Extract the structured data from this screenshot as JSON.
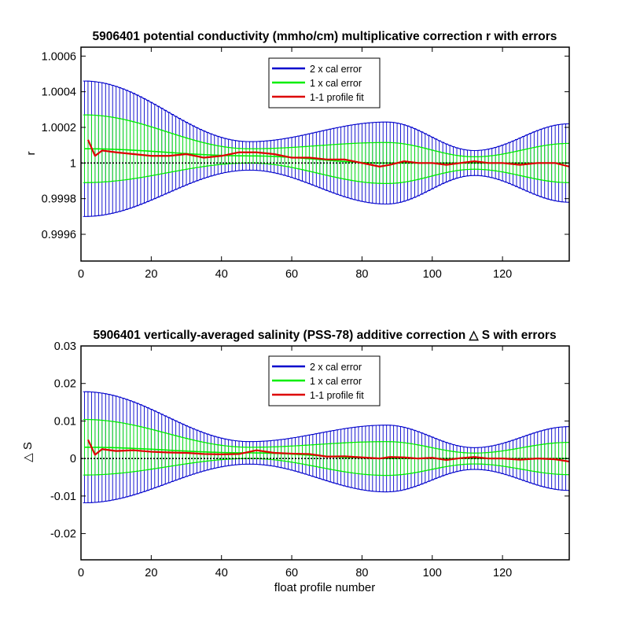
{
  "chart_data": [
    {
      "type": "line",
      "title": "5906401 potential conductivity (mmho/cm) multiplicative correction r with errors",
      "xlabel": "",
      "ylabel": "r",
      "xlim": [
        0,
        139
      ],
      "ylim": [
        0.99945,
        1.00065
      ],
      "xticks": [
        0,
        20,
        40,
        60,
        80,
        100,
        120
      ],
      "xtick_labels": [
        "0",
        "20",
        "40",
        "60",
        "80",
        "100",
        "120"
      ],
      "yticks": [
        0.9996,
        0.9998,
        1.0,
        1.0002,
        1.0004,
        1.0006
      ],
      "ytick_labels": [
        "0.9996",
        "0.9998",
        "1",
        "1.0002",
        "1.0004",
        "1.0006"
      ],
      "reference_line": 1.0,
      "legend_position": "top-center",
      "legend": [
        "2 x cal error",
        "1 x cal error",
        "1-1 profile fit"
      ],
      "colors": {
        "two_cal": "#0000cc",
        "one_cal": "#00ee00",
        "fit": "#dd0000",
        "reference": "#000000"
      },
      "error_knots_x": [
        1,
        48,
        87,
        112,
        139
      ],
      "center_knots": [
        1.00008,
        1.00004,
        1.0,
        1.0,
        1.0
      ],
      "two_cal_halfwidth_knots": [
        0.00038,
        8e-05,
        0.00023,
        7e-05,
        0.00022
      ],
      "one_cal_halfwidth_knots": [
        0.00019,
        4e-05,
        0.000115,
        3.5e-05,
        0.00011
      ],
      "fit_x": [
        2,
        4,
        6,
        10,
        15,
        20,
        25,
        30,
        35,
        40,
        45,
        50,
        55,
        60,
        65,
        70,
        75,
        80,
        85,
        88,
        92,
        96,
        100,
        104,
        108,
        112,
        116,
        120,
        125,
        130,
        135,
        139
      ],
      "fit_y": [
        1.00013,
        1.00004,
        1.00007,
        1.00006,
        1.00005,
        1.00004,
        1.00004,
        1.00005,
        1.00003,
        1.00004,
        1.00006,
        1.00006,
        1.00005,
        1.00003,
        1.00003,
        1.00002,
        1.00002,
        1.0,
        0.99998,
        0.99999,
        1.00001,
        1.0,
        1.0,
        0.99999,
        1.0,
        1.00001,
        1.0,
        1.0,
        0.99999,
        1.0,
        1.0,
        0.99998
      ]
    },
    {
      "type": "line",
      "title": "5906401 vertically-averaged salinity (PSS-78) additive correction △ S with errors",
      "xlabel": "float profile number",
      "ylabel": "△ S",
      "xlim": [
        0,
        139
      ],
      "ylim": [
        -0.027,
        0.03
      ],
      "xticks": [
        0,
        20,
        40,
        60,
        80,
        100,
        120
      ],
      "xtick_labels": [
        "0",
        "20",
        "40",
        "60",
        "80",
        "100",
        "120"
      ],
      "yticks": [
        -0.02,
        -0.01,
        0,
        0.01,
        0.02,
        0.03
      ],
      "ytick_labels": [
        "-0.02",
        "-0.01",
        "0",
        "0.01",
        "0.02",
        "0.03"
      ],
      "reference_line": 0,
      "legend_position": "top-center",
      "legend": [
        "2 x cal error",
        "1 x cal error",
        "1-1 profile fit"
      ],
      "colors": {
        "two_cal": "#0000cc",
        "one_cal": "#00ee00",
        "fit": "#dd0000",
        "reference": "#000000"
      },
      "error_knots_x": [
        1,
        48,
        87,
        112,
        139
      ],
      "center_knots": [
        0.003,
        0.0015,
        0.0,
        0.0,
        0.0
      ],
      "two_cal_halfwidth_knots": [
        0.0148,
        0.003,
        0.0089,
        0.0029,
        0.0085
      ],
      "one_cal_halfwidth_knots": [
        0.0074,
        0.0015,
        0.0045,
        0.00145,
        0.0043
      ],
      "fit_x": [
        2,
        4,
        6,
        10,
        15,
        20,
        25,
        30,
        35,
        40,
        45,
        50,
        55,
        60,
        65,
        70,
        75,
        80,
        85,
        88,
        92,
        96,
        100,
        104,
        108,
        112,
        116,
        120,
        125,
        130,
        135,
        139
      ],
      "fit_y": [
        0.005,
        0.001,
        0.0025,
        0.002,
        0.0022,
        0.0018,
        0.0016,
        0.0015,
        0.0012,
        0.0011,
        0.0012,
        0.0022,
        0.0015,
        0.0013,
        0.0012,
        0.0005,
        0.0006,
        0.0003,
        0.0,
        0.0004,
        0.0003,
        0.0,
        0.0002,
        -0.0004,
        0.0001,
        0.0004,
        0.0,
        0.0,
        -0.0003,
        0.0,
        -0.0002,
        -0.0008
      ]
    }
  ]
}
